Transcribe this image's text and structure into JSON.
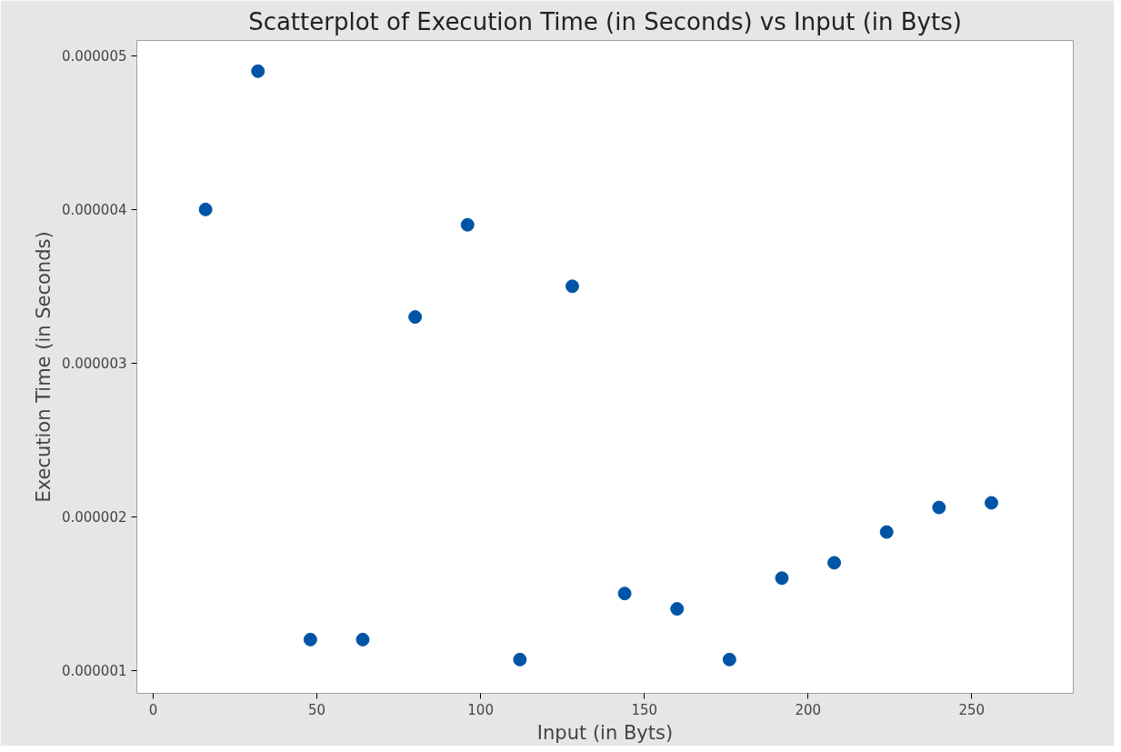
{
  "chart_data": {
    "type": "scatter",
    "title": "Scatterplot of Execution Time (in Seconds) vs Input (in Byts)",
    "xlabel": "Input (in Byts)",
    "ylabel": "Execution Time (in Seconds)",
    "x": [
      16,
      32,
      48,
      64,
      80,
      96,
      112,
      128,
      144,
      160,
      176,
      192,
      208,
      224,
      240,
      256
    ],
    "series": [
      {
        "color": "#0054a6",
        "values": [
          4e-06,
          4.9e-06,
          1.2e-06,
          1.2e-06,
          3.3e-06,
          3.9e-06,
          1.07e-06,
          3.5e-06,
          1.5e-06,
          1.4e-06,
          1.07e-06,
          1.6e-06,
          1.7e-06,
          1.9e-06,
          2.06e-06,
          2.09e-06
        ]
      }
    ],
    "xlim": [
      -5,
      281
    ],
    "xticks": [
      0,
      50,
      100,
      150,
      200,
      250
    ],
    "ylim": [
      8.5e-07,
      5.1e-06
    ],
    "yticks": [
      {
        "value": 1e-06,
        "label": "0.000001"
      },
      {
        "value": 2e-06,
        "label": "0.000002"
      },
      {
        "value": 3e-06,
        "label": "0.000003"
      },
      {
        "value": 4e-06,
        "label": "0.000004"
      },
      {
        "value": 5e-06,
        "label": "0.000005"
      }
    ],
    "marker": "circle",
    "grid": false
  }
}
